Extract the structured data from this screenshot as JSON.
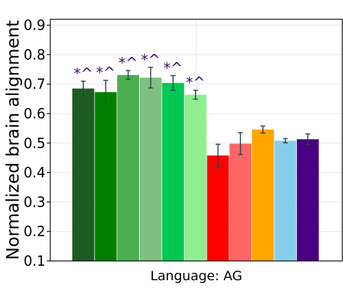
{
  "chart_data": {
    "type": "bar",
    "title": "",
    "xlabel": "Language: AG",
    "ylabel": "Normalized brain alignment",
    "ylim": [
      0.1,
      0.92
    ],
    "yticks": [
      "0.1",
      "0.2",
      "0.3",
      "0.4",
      "0.5",
      "0.6",
      "0.7",
      "0.8",
      "0.9"
    ],
    "grid": true,
    "legend": "none",
    "bars": [
      {
        "value": 0.685,
        "error": 0.025,
        "color": "#1e5c24",
        "annotation": "*^"
      },
      {
        "value": 0.673,
        "error": 0.04,
        "color": "#008000",
        "annotation": "*^"
      },
      {
        "value": 0.731,
        "error": 0.015,
        "color": "#4caf50",
        "annotation": "*^"
      },
      {
        "value": 0.722,
        "error": 0.035,
        "color": "#7fc080",
        "annotation": "*^"
      },
      {
        "value": 0.704,
        "error": 0.025,
        "color": "#00c853",
        "annotation": "*^"
      },
      {
        "value": 0.664,
        "error": 0.015,
        "color": "#90ee90",
        "annotation": "*^"
      },
      {
        "value": 0.458,
        "error": 0.038,
        "color": "#ff0000",
        "annotation": ""
      },
      {
        "value": 0.498,
        "error": 0.037,
        "color": "#ff6666",
        "annotation": ""
      },
      {
        "value": 0.546,
        "error": 0.012,
        "color": "#ffa500",
        "annotation": ""
      },
      {
        "value": 0.508,
        "error": 0.007,
        "color": "#87ceeb",
        "annotation": ""
      },
      {
        "value": 0.513,
        "error": 0.018,
        "color": "#4b0082",
        "annotation": ""
      }
    ],
    "errorbar_color": "#2c3e50",
    "annotation_color": "#3d0a6e"
  }
}
